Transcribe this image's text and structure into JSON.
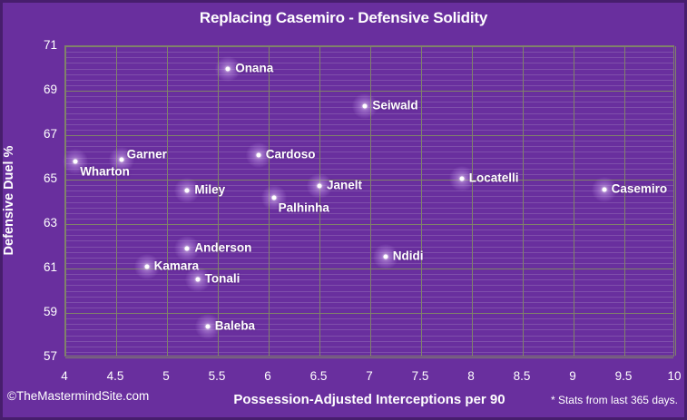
{
  "title": "Replacing Casemiro - Defensive Solidity",
  "y_axis_title": "Defensive Duel %",
  "x_axis_title": "Possession-Adjusted Interceptions per 90",
  "footer": {
    "credit": "©TheMastermindSite.com",
    "note": "* Stats from last 365 days."
  },
  "colors": {
    "background": "#692F9E",
    "edge_vignette": "#2C1046",
    "major_grid": "#80826A",
    "minor_grid": "rgba(205,198,220,0.22)",
    "marker": "#FFFFFF",
    "marker_glow": "#C396EB",
    "text": "#FFFFFF"
  },
  "chart_data": {
    "type": "scatter",
    "title": "Replacing Casemiro - Defensive Solidity",
    "xlabel": "Possession-Adjusted Interceptions per 90",
    "ylabel": "Defensive Duel %",
    "xlim": [
      4,
      10
    ],
    "ylim": [
      57,
      71
    ],
    "x_tick_labels": [
      "4",
      "4.5",
      "5",
      "5.5",
      "6",
      "6.5",
      "7",
      "7.5",
      "8",
      "8.5",
      "9",
      "9.5",
      "10"
    ],
    "y_tick_labels": [
      "71",
      "69",
      "67",
      "65",
      "63",
      "61",
      "59",
      "57"
    ],
    "y_minor_step": 0.25,
    "grid": true,
    "legend": false,
    "points": [
      {
        "name": "Onana",
        "x": 5.6,
        "y": 70.0,
        "label_pos": "right"
      },
      {
        "name": "Seiwald",
        "x": 6.95,
        "y": 68.3,
        "label_pos": "right"
      },
      {
        "name": "Garner",
        "x": 4.55,
        "y": 65.9,
        "label_pos": "above-right"
      },
      {
        "name": "Wharton",
        "x": 4.1,
        "y": 65.8,
        "label_pos": "below-right"
      },
      {
        "name": "Cardoso",
        "x": 5.9,
        "y": 66.1,
        "label_pos": "right"
      },
      {
        "name": "Miley",
        "x": 5.2,
        "y": 64.5,
        "label_pos": "right"
      },
      {
        "name": "Locatelli",
        "x": 7.9,
        "y": 65.05,
        "label_pos": "right"
      },
      {
        "name": "Casemiro",
        "x": 9.3,
        "y": 64.55,
        "label_pos": "right"
      },
      {
        "name": "Janelt",
        "x": 6.5,
        "y": 64.7,
        "label_pos": "right"
      },
      {
        "name": "Palhinha",
        "x": 6.05,
        "y": 64.2,
        "label_pos": "below-right"
      },
      {
        "name": "Anderson",
        "x": 5.2,
        "y": 61.9,
        "label_pos": "right"
      },
      {
        "name": "Ndidi",
        "x": 7.15,
        "y": 61.55,
        "label_pos": "right"
      },
      {
        "name": "Kamara",
        "x": 4.8,
        "y": 61.1,
        "label_pos": "right"
      },
      {
        "name": "Tonali",
        "x": 5.3,
        "y": 60.5,
        "label_pos": "right"
      },
      {
        "name": "Baleba",
        "x": 5.4,
        "y": 58.4,
        "label_pos": "right"
      }
    ]
  }
}
